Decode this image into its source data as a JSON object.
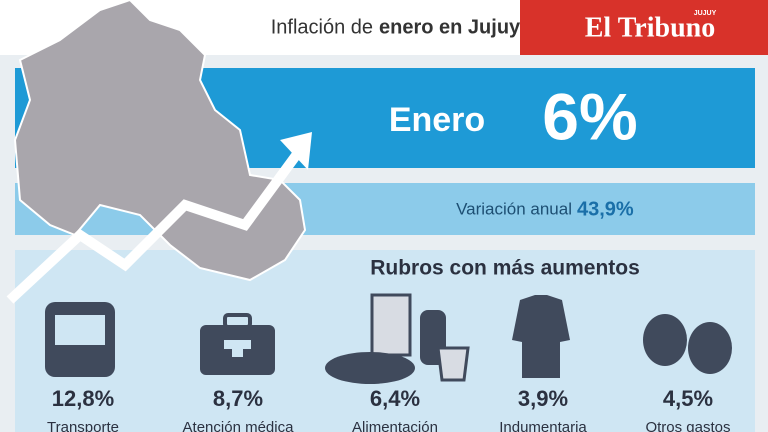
{
  "header": {
    "title_light": "Inflación de",
    "title_bold": "enero en Jujuy",
    "brand": "El Tribuno",
    "brand_region": "JUJUY"
  },
  "main": {
    "label": "Enero",
    "value": "6%"
  },
  "annual": {
    "label": "Variación anual",
    "value": "43,9%"
  },
  "section_title": "Rubros con más aumentos",
  "items": [
    {
      "value": "12,8%",
      "label": "Transporte"
    },
    {
      "value": "8,7%",
      "label": "Atención médica"
    },
    {
      "value": "6,4%",
      "label": "Alimentación"
    },
    {
      "value": "3,9%",
      "label": "Indumentaria"
    },
    {
      "value": "4,5%",
      "label": "Otros gastos"
    }
  ]
}
